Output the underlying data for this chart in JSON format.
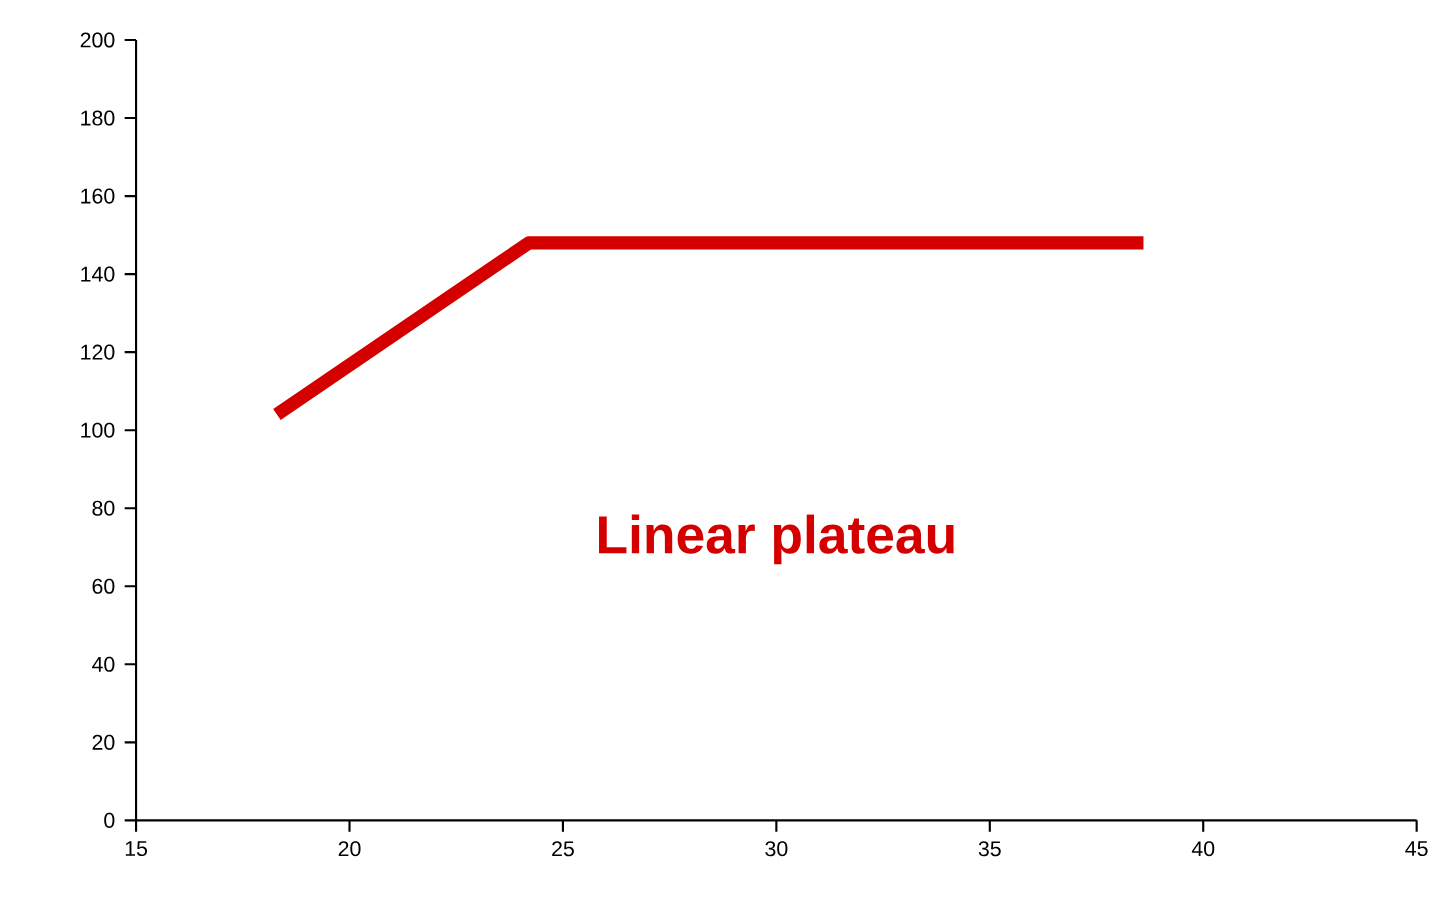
{
  "chart_data": {
    "type": "line",
    "x": [
      18.3,
      24.2,
      38.6
    ],
    "series": [
      {
        "color": "#d40000",
        "values": [
          104,
          148,
          148
        ]
      }
    ],
    "xlim": [
      15,
      45
    ],
    "xticks": [
      15,
      20,
      25,
      30,
      35,
      40,
      45
    ],
    "ylim": [
      0,
      200
    ],
    "yticks": [
      0,
      20,
      40,
      60,
      80,
      100,
      120,
      140,
      160,
      180,
      200
    ],
    "grid": false,
    "marker": "none",
    "line_style": "solid",
    "annotations": [
      "Linear plateau"
    ]
  }
}
